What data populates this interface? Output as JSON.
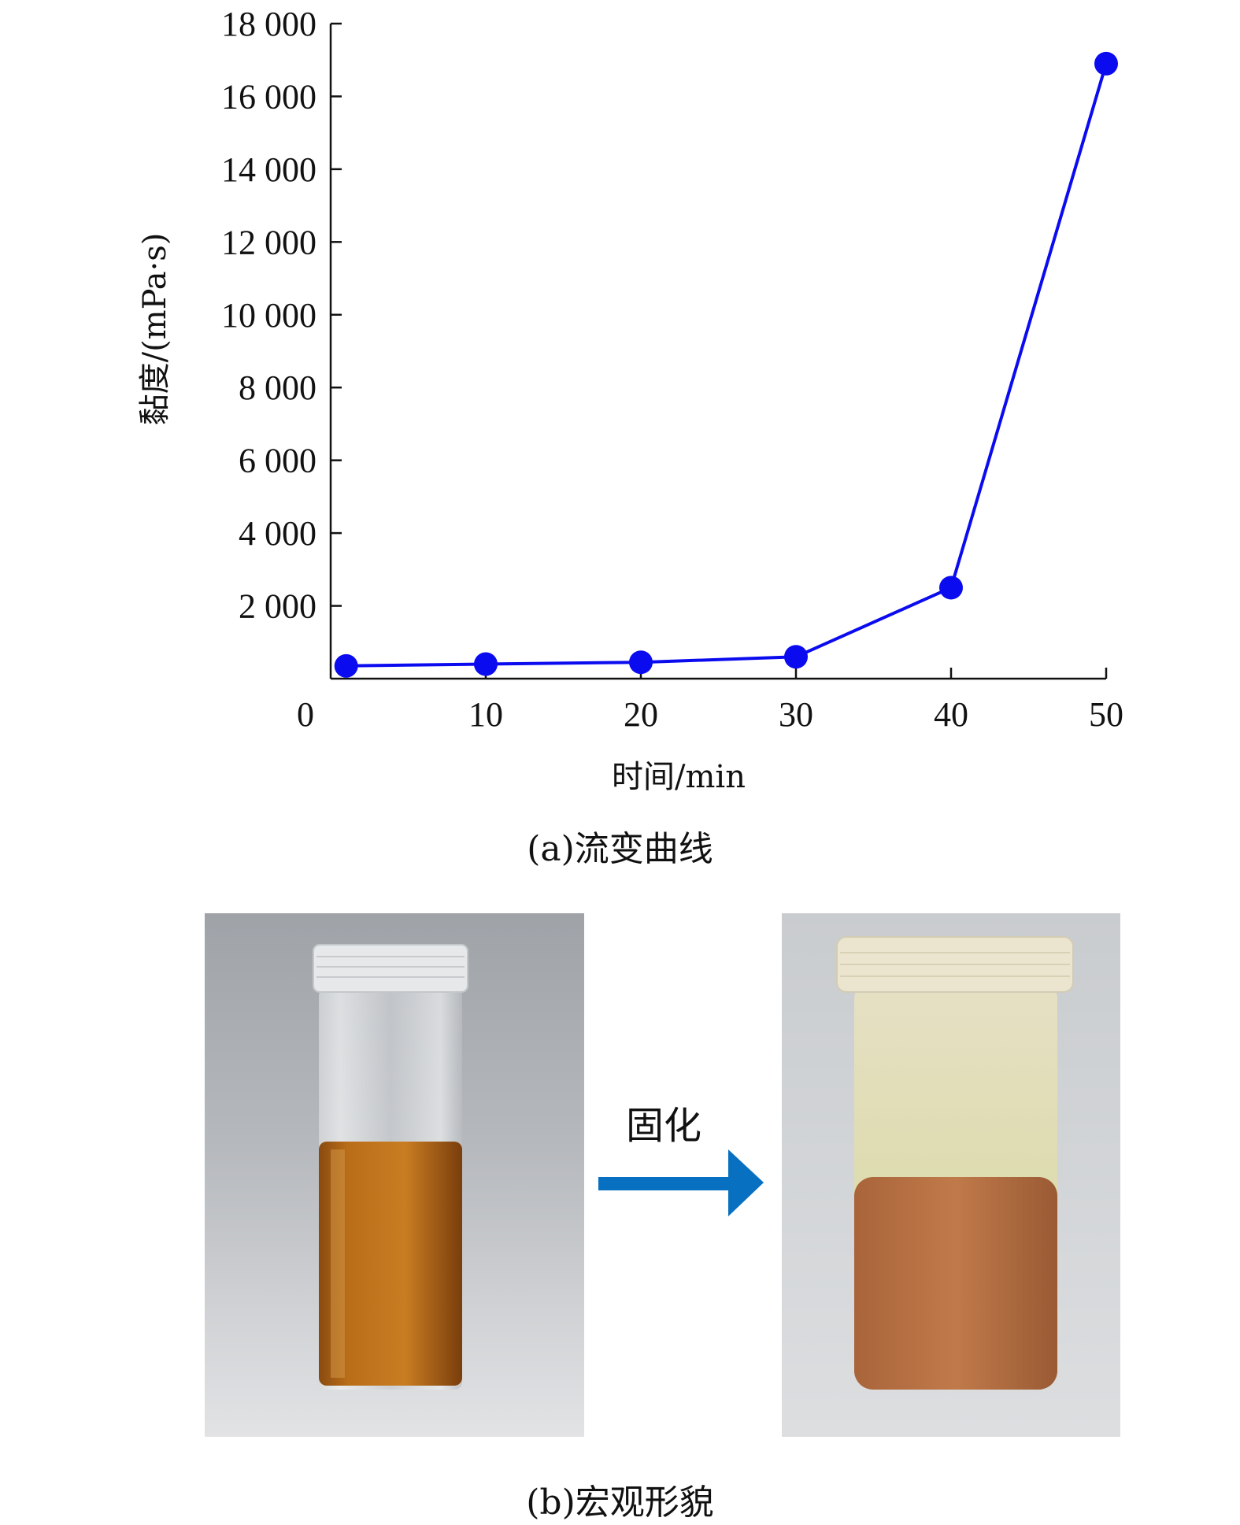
{
  "chart_data": {
    "type": "line",
    "x": [
      1,
      10,
      20,
      30,
      40,
      50
    ],
    "series": [
      {
        "values": [
          350,
          400,
          450,
          600,
          2500,
          16900
        ]
      }
    ],
    "xlabel": "时间/min",
    "ylabel": "黏度/(mPa·s)",
    "xlim": [
      0,
      50
    ],
    "ylim": [
      0,
      18000
    ],
    "xticks": [
      0,
      10,
      20,
      30,
      40,
      50
    ],
    "xtick_labels": [
      "0",
      "10",
      "20",
      "30",
      "40",
      "50"
    ],
    "yticks": [
      2000,
      4000,
      6000,
      8000,
      10000,
      12000,
      14000,
      16000,
      18000
    ],
    "ytick_labels": [
      "2 000",
      "4 000",
      "6 000",
      "8 000",
      "10 000",
      "12 000",
      "14 000",
      "16 000",
      "18 000"
    ],
    "grid": false,
    "color": "#0b0bf0"
  },
  "captions": {
    "a": "(a)流变曲线",
    "b": "(b)宏观形貌"
  },
  "figure_b": {
    "arrow_label": "固化",
    "arrow_color": "#0870c0",
    "photo_before": "liquid-sample-vial",
    "photo_after": "solidified-sample-vial"
  }
}
